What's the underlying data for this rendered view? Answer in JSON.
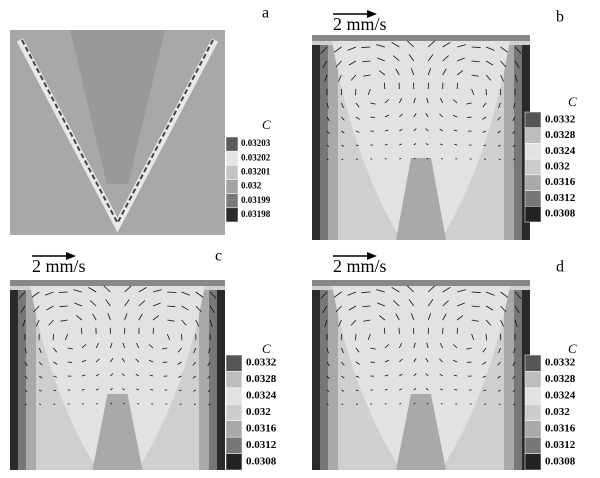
{
  "panels": [
    {
      "label": "a",
      "legend": {
        "title": "C",
        "levels": [
          "0.03203",
          "0.03202",
          "0.03201",
          "0.032",
          "0.03199",
          "0.03198"
        ],
        "colors": [
          "#5a5a5a",
          "#e4e4e4",
          "#c4c4c4",
          "#a2a2a2",
          "#7a7a7a",
          "#2a2a2a"
        ]
      }
    },
    {
      "label": "b",
      "scale_bar": "2 mm/s",
      "legend": {
        "title": "C",
        "levels": [
          "0.0332",
          "0.0328",
          "0.0324",
          "0.032",
          "0.0316",
          "0.0312",
          "0.0308"
        ],
        "colors": [
          "#555555",
          "#bdbdbd",
          "#e2e2e2",
          "#cdcdcd",
          "#a9a9a9",
          "#777777",
          "#222222"
        ]
      }
    },
    {
      "label": "c",
      "scale_bar": "2 mm/s",
      "legend": {
        "title": "C",
        "levels": [
          "0.0332",
          "0.0328",
          "0.0324",
          "0.032",
          "0.0316",
          "0.0312",
          "0.0308"
        ],
        "colors": [
          "#555555",
          "#bdbdbd",
          "#e2e2e2",
          "#cdcdcd",
          "#a9a9a9",
          "#777777",
          "#222222"
        ]
      }
    },
    {
      "label": "d",
      "scale_bar": "2 mm/s",
      "legend": {
        "title": "C",
        "levels": [
          "0.0332",
          "0.0328",
          "0.0324",
          "0.032",
          "0.0316",
          "0.0312",
          "0.0308"
        ],
        "colors": [
          "#555555",
          "#bdbdbd",
          "#e2e2e2",
          "#cdcdcd",
          "#a9a9a9",
          "#777777",
          "#222222"
        ]
      }
    }
  ]
}
